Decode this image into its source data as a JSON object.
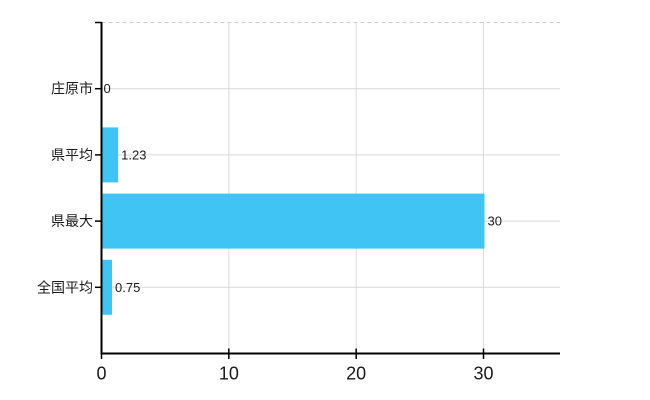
{
  "chart_data": {
    "type": "bar",
    "orientation": "horizontal",
    "title": "",
    "xlabel": "",
    "ylabel": "",
    "categories": [
      "庄原市",
      "県平均",
      "県最大",
      "全国平均"
    ],
    "values": [
      0,
      1.23,
      30,
      0.75
    ],
    "data_labels": [
      "0",
      "1.23",
      "30",
      "0.75"
    ],
    "x_ticks": [
      0,
      10,
      20,
      30
    ],
    "x_tick_labels": [
      "0",
      "10",
      "20",
      "30"
    ],
    "xlim": [
      0,
      36
    ],
    "grid": true,
    "legend": "none",
    "colors": {
      "bar": "#40C4F4",
      "axis": "#000000",
      "vertical_gridline": "#DADADA",
      "row_gridline": "#D5D9D5",
      "top_border": "#CCCCCC",
      "text": "#1A1A1A"
    }
  }
}
